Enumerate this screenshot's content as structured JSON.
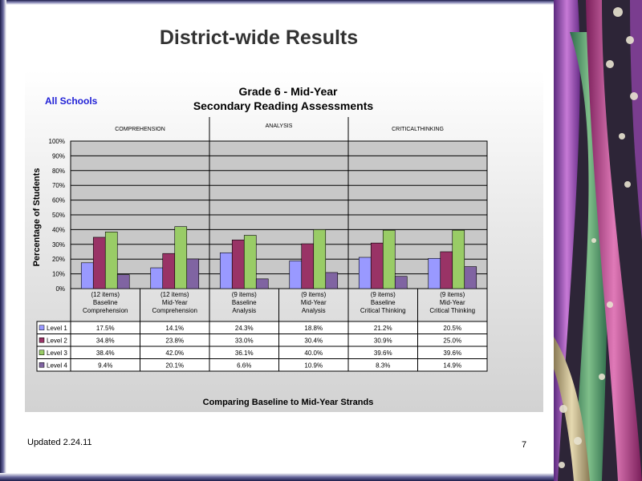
{
  "slide": {
    "title": "District-wide Results",
    "updated": "Updated  2.24.11",
    "page_number": "7"
  },
  "chart_data": {
    "type": "bar",
    "scope_label": "All Schools",
    "title": "Grade 6 - Mid-Year",
    "subtitle": "Secondary Reading Assessments",
    "ylabel": "Percentage of Students",
    "xlabel": "Comparing Baseline to Mid-Year Strands",
    "ylim": [
      0,
      100
    ],
    "y_ticks": [
      "0%",
      "10%",
      "20%",
      "30%",
      "40%",
      "50%",
      "60%",
      "70%",
      "80%",
      "90%",
      "100%"
    ],
    "grid": true,
    "legend": "table-below",
    "sections": [
      "COMPREHENSION",
      "ANALYSIS",
      "CRITICALTHINKING"
    ],
    "categories": [
      [
        "(12 items)",
        "Baseline",
        "Comprehension"
      ],
      [
        "(12 items)",
        "Mid-Year",
        "Comprehension"
      ],
      [
        "(9 items)",
        "Baseline",
        "Analysis"
      ],
      [
        "(9 items)",
        "Mid-Year",
        "Analysis"
      ],
      [
        "(9 items)",
        "Baseline",
        "Critical Thinking"
      ],
      [
        "(9 items)",
        "Mid-Year",
        "Critical Thinking"
      ]
    ],
    "series": [
      {
        "name": "Level 1",
        "color": "#9999ff",
        "values": [
          17.5,
          14.1,
          24.3,
          18.8,
          21.2,
          20.5
        ],
        "labels": [
          "17.5%",
          "14.1%",
          "24.3%",
          "18.8%",
          "21.2%",
          "20.5%"
        ]
      },
      {
        "name": "Level 2",
        "color": "#993366",
        "values": [
          34.8,
          23.8,
          33.0,
          30.4,
          30.9,
          25.0
        ],
        "labels": [
          "34.8%",
          "23.8%",
          "33.0%",
          "30.4%",
          "30.9%",
          "25.0%"
        ]
      },
      {
        "name": "Level 3",
        "color": "#99cc66",
        "values": [
          38.4,
          42.0,
          36.1,
          40.0,
          39.6,
          39.6
        ],
        "labels": [
          "38.4%",
          "42.0%",
          "36.1%",
          "40.0%",
          "39.6%",
          "39.6%"
        ]
      },
      {
        "name": "Level 4",
        "color": "#8064a2",
        "values": [
          9.4,
          20.1,
          6.6,
          10.9,
          8.3,
          14.9
        ],
        "labels": [
          "9.4%",
          "20.1%",
          "6.6%",
          "10.9%",
          "8.3%",
          "14.9%"
        ]
      }
    ]
  }
}
